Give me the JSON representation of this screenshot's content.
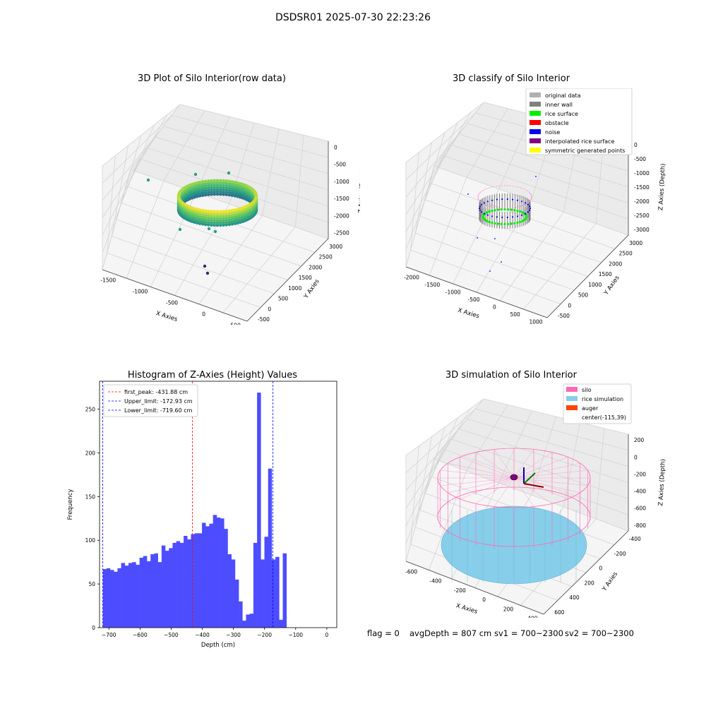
{
  "figure": {
    "title": "DSDSR01 2025-07-30 22:23:26",
    "status": {
      "flag": "flag = 0",
      "avg_depth": "avgDepth = 807 cm",
      "sv1": "sv1 = 700~2300",
      "sv2": "sv2 = 700~2300"
    }
  },
  "chart_data": [
    {
      "type": "scatter",
      "projection": "3d",
      "title": "3D Plot of Silo Interior(row data)",
      "xlabel": "X Axies",
      "ylabel": "Y Axies",
      "zlabel": "Z Axies (Depth)",
      "x_ticks": [
        "-1500",
        "-1000",
        "-500",
        "0",
        "500"
      ],
      "y_ticks": [
        "-500",
        "0",
        "500",
        "1000",
        "1500",
        "2000",
        "2500",
        "3000"
      ],
      "z_ticks": [
        "0",
        "-500",
        "-1000",
        "-1500",
        "-2000",
        "-2500"
      ],
      "xlim": [
        -1700,
        550
      ],
      "ylim": [
        -600,
        3300
      ],
      "zlim": [
        -2900,
        100
      ],
      "colormap": "viridis",
      "grid": true
    },
    {
      "type": "scatter",
      "projection": "3d",
      "title": "3D classify of Silo Interior",
      "xlabel": "X Axies",
      "ylabel": "Y Axies",
      "zlabel": "Z Axies (Depth)",
      "x_ticks": [
        "-2000",
        "-1500",
        "-1000",
        "-500",
        "0",
        "500",
        "1000"
      ],
      "y_ticks": [
        "-500",
        "0",
        "500",
        "1000",
        "1500",
        "2000",
        "2500",
        "3000"
      ],
      "z_ticks": [
        "0",
        "-500",
        "-1000",
        "-1500",
        "-2000",
        "-2500",
        "-3000"
      ],
      "legend_position": "top-right",
      "legend": [
        {
          "label": "original data",
          "color": "#b0b0b0"
        },
        {
          "label": "inner wall",
          "color": "#808080"
        },
        {
          "label": "rice surface",
          "color": "#00ee00"
        },
        {
          "label": "obstacle",
          "color": "#ff0000"
        },
        {
          "label": "noise",
          "color": "#0000ee"
        },
        {
          "label": "interpolated rice surface",
          "color": "#800080"
        },
        {
          "label": "symmetric generated points",
          "color": "#ffff00"
        }
      ],
      "grid": true
    },
    {
      "type": "bar",
      "title": "Histogram of Z-Axies (Height) Values",
      "xlabel": "Depth (cm)",
      "ylabel": "Frequency",
      "xlim": [
        -730,
        32
      ],
      "ylim": [
        0,
        282
      ],
      "x_ticks": [
        -700,
        -600,
        -500,
        -400,
        -300,
        -200,
        -100,
        0
      ],
      "y_ticks": [
        0,
        50,
        100,
        150,
        200,
        250
      ],
      "bin_start": -719.6,
      "bin_width": 11.8,
      "bar_color": "#4d4dff",
      "values": [
        67,
        68,
        66,
        64,
        68,
        74,
        71,
        74,
        75,
        72,
        80,
        82,
        76,
        84,
        85,
        75,
        94,
        88,
        91,
        97,
        99,
        97,
        105,
        101,
        107,
        108,
        108,
        120,
        116,
        119,
        129,
        126,
        125,
        113,
        84,
        78,
        55,
        30,
        8,
        15,
        16,
        97,
        269,
        78,
        104,
        182,
        78,
        81,
        9,
        85
      ],
      "vlines": [
        {
          "label": "first_peak: -431.88 cm",
          "x": -431.88,
          "color": "#ff0000"
        },
        {
          "label": "Upper_limit: -172.93 cm",
          "x": -172.93,
          "color": "#0000ff"
        },
        {
          "label": "Lower_limit: -719.60 cm",
          "x": -719.6,
          "color": "#0000ff"
        }
      ],
      "legend_position": "top-left"
    },
    {
      "type": "surface",
      "projection": "3d",
      "title": "3D simulation of Silo Interior",
      "xlabel": "X Axies",
      "ylabel": "Y Axies",
      "zlabel": "Z Axies (Depth)",
      "x_ticks": [
        "-600",
        "-400",
        "-200",
        "0",
        "200",
        "400"
      ],
      "y_ticks": [
        "600",
        "400",
        "200",
        "0",
        "-200",
        "-400"
      ],
      "z_ticks": [
        "200",
        "0",
        "-200",
        "-400",
        "-600",
        "-800"
      ],
      "legend_position": "top-right",
      "legend": [
        {
          "label": "silo",
          "color": "#ff69b4"
        },
        {
          "label": "rice simulation",
          "color": "#87ceeb"
        },
        {
          "label": "auger",
          "color": "#ff4500"
        },
        {
          "label": "center(-115,39)",
          "color": ""
        }
      ],
      "grid": true
    }
  ]
}
